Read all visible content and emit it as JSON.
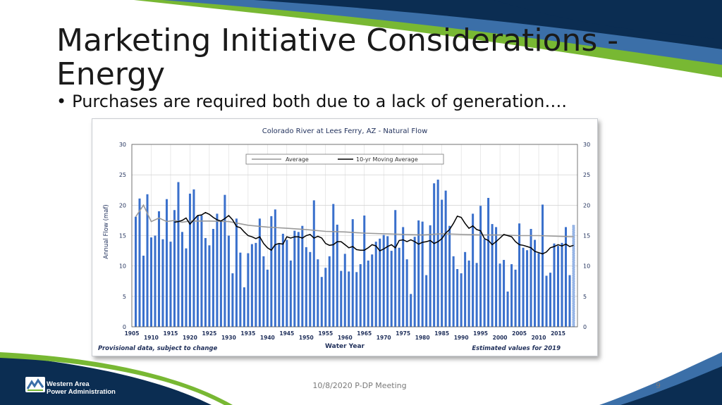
{
  "slide": {
    "title": "Marketing Initiative Considerations - Energy",
    "bullet": "Purchases are required both due to a lack of generation….",
    "footer_center": "10/8/2020 P-DP Meeting",
    "page_number": "9",
    "logo_line1": "Western Area",
    "logo_line2": "Power Administration",
    "colors": {
      "navy": "#0b2d52",
      "green": "#78b833",
      "blue": "#3b6fa8",
      "bar": "#3a70cc"
    }
  },
  "chart_data": {
    "type": "bar",
    "title": "Colorado River at Lees Ferry, AZ - Natural Flow",
    "xlabel": "Water Year",
    "ylabel": "Annual Flow (maf)",
    "ylim": [
      0,
      30
    ],
    "yticks": [
      0,
      5,
      10,
      15,
      20,
      25,
      30
    ],
    "xticks": [
      1905,
      1910,
      1915,
      1920,
      1925,
      1930,
      1935,
      1940,
      1945,
      1950,
      1955,
      1960,
      1965,
      1970,
      1975,
      1980,
      1985,
      1990,
      1995,
      2000,
      2005,
      2010,
      2015
    ],
    "grid": true,
    "legend": [
      "Average",
      "10-yr Moving Average"
    ],
    "legend_position": "top",
    "left_note": "Provisional data, subject to change",
    "right_note": "Estimated values for 2019",
    "years": [
      1906,
      1907,
      1908,
      1909,
      1910,
      1911,
      1912,
      1913,
      1914,
      1915,
      1916,
      1917,
      1918,
      1919,
      1920,
      1921,
      1922,
      1923,
      1924,
      1925,
      1926,
      1927,
      1928,
      1929,
      1930,
      1931,
      1932,
      1933,
      1934,
      1935,
      1936,
      1937,
      1938,
      1939,
      1940,
      1941,
      1942,
      1943,
      1944,
      1945,
      1946,
      1947,
      1948,
      1949,
      1950,
      1951,
      1952,
      1953,
      1954,
      1955,
      1956,
      1957,
      1958,
      1959,
      1960,
      1961,
      1962,
      1963,
      1964,
      1965,
      1966,
      1967,
      1968,
      1969,
      1970,
      1971,
      1972,
      1973,
      1974,
      1975,
      1976,
      1977,
      1978,
      1979,
      1980,
      1981,
      1982,
      1983,
      1984,
      1985,
      1986,
      1987,
      1988,
      1989,
      1990,
      1991,
      1992,
      1993,
      1994,
      1995,
      1996,
      1997,
      1998,
      1999,
      2000,
      2001,
      2002,
      2003,
      2004,
      2005,
      2006,
      2007,
      2008,
      2009,
      2010,
      2011,
      2012,
      2013,
      2014,
      2015,
      2016,
      2017,
      2018,
      2019
    ],
    "values": [
      18.1,
      21.1,
      11.7,
      21.8,
      14.7,
      15.0,
      19.0,
      14.4,
      21.0,
      14.0,
      19.2,
      23.8,
      15.6,
      12.9,
      21.9,
      22.6,
      18.3,
      18.3,
      14.6,
      13.4,
      16.1,
      18.6,
      17.3,
      21.7,
      15.0,
      8.8,
      17.8,
      12.2,
      6.5,
      12.1,
      13.6,
      13.8,
      17.8,
      11.6,
      9.4,
      18.2,
      19.3,
      13.6,
      15.3,
      14.3,
      10.9,
      15.8,
      15.6,
      16.6,
      13.1,
      12.3,
      20.8,
      11.1,
      8.2,
      9.7,
      11.6,
      20.2,
      16.8,
      9.2,
      12.0,
      9.1,
      17.7,
      9.0,
      10.3,
      18.3,
      10.9,
      11.9,
      14.0,
      14.5,
      15.1,
      14.9,
      12.5,
      19.2,
      13.0,
      16.4,
      11.1,
      5.4,
      14.8,
      17.5,
      17.3,
      8.5,
      16.7,
      23.6,
      24.2,
      20.9,
      22.4,
      16.6,
      11.6,
      9.5,
      8.8,
      12.3,
      10.9,
      18.6,
      10.5,
      19.9,
      14.4,
      21.2,
      16.9,
      16.4,
      10.4,
      11.0,
      5.8,
      10.3,
      9.4,
      17.0,
      13.0,
      12.6,
      16.1,
      14.3,
      12.1,
      20.1,
      8.4,
      8.9,
      13.7,
      13.3,
      13.8,
      16.4,
      8.5,
      16.7
    ],
    "average_line": [
      [
        1906,
        18.1
      ],
      [
        1908,
        20.0
      ],
      [
        1910,
        17.3
      ],
      [
        1912,
        17.9
      ],
      [
        1914,
        17.3
      ],
      [
        1916,
        17.5
      ],
      [
        1918,
        17.2
      ],
      [
        1920,
        17.4
      ],
      [
        1925,
        17.4
      ],
      [
        1930,
        17.3
      ],
      [
        1935,
        16.7
      ],
      [
        1940,
        16.4
      ],
      [
        1945,
        16.2
      ],
      [
        1950,
        16.0
      ],
      [
        1955,
        15.7
      ],
      [
        1960,
        15.6
      ],
      [
        1965,
        15.4
      ],
      [
        1970,
        15.3
      ],
      [
        1975,
        15.2
      ],
      [
        1980,
        15.1
      ],
      [
        1985,
        15.3
      ],
      [
        1990,
        15.2
      ],
      [
        1995,
        15.1
      ],
      [
        2000,
        15.1
      ],
      [
        2005,
        15.0
      ],
      [
        2010,
        15.0
      ],
      [
        2015,
        14.9
      ],
      [
        2019,
        14.8
      ]
    ],
    "moving_average_line": [
      [
        1916,
        17.2
      ],
      [
        1917,
        17.3
      ],
      [
        1918,
        17.5
      ],
      [
        1919,
        17.9
      ],
      [
        1920,
        16.9
      ],
      [
        1921,
        17.6
      ],
      [
        1922,
        18.3
      ],
      [
        1923,
        18.4
      ],
      [
        1924,
        18.8
      ],
      [
        1925,
        18.5
      ],
      [
        1926,
        18.0
      ],
      [
        1927,
        17.6
      ],
      [
        1928,
        17.4
      ],
      [
        1929,
        17.8
      ],
      [
        1930,
        18.3
      ],
      [
        1931,
        17.6
      ],
      [
        1932,
        16.5
      ],
      [
        1933,
        16.3
      ],
      [
        1934,
        15.6
      ],
      [
        1935,
        15.0
      ],
      [
        1936,
        14.8
      ],
      [
        1937,
        14.5
      ],
      [
        1938,
        14.8
      ],
      [
        1939,
        13.7
      ],
      [
        1940,
        13.0
      ],
      [
        1941,
        12.6
      ],
      [
        1942,
        13.5
      ],
      [
        1943,
        13.7
      ],
      [
        1944,
        13.6
      ],
      [
        1945,
        14.8
      ],
      [
        1946,
        14.6
      ],
      [
        1947,
        14.8
      ],
      [
        1948,
        14.8
      ],
      [
        1949,
        14.6
      ],
      [
        1950,
        15.0
      ],
      [
        1951,
        15.2
      ],
      [
        1952,
        14.6
      ],
      [
        1953,
        14.9
      ],
      [
        1954,
        14.6
      ],
      [
        1955,
        13.7
      ],
      [
        1956,
        13.4
      ],
      [
        1957,
        13.5
      ],
      [
        1958,
        14.0
      ],
      [
        1959,
        14.0
      ],
      [
        1960,
        13.5
      ],
      [
        1961,
        13.0
      ],
      [
        1962,
        13.2
      ],
      [
        1963,
        12.7
      ],
      [
        1964,
        12.6
      ],
      [
        1965,
        12.6
      ],
      [
        1966,
        13.0
      ],
      [
        1967,
        13.5
      ],
      [
        1968,
        13.3
      ],
      [
        1969,
        12.5
      ],
      [
        1970,
        12.8
      ],
      [
        1971,
        13.2
      ],
      [
        1972,
        13.5
      ],
      [
        1973,
        13.0
      ],
      [
        1974,
        14.2
      ],
      [
        1975,
        14.3
      ],
      [
        1976,
        14.0
      ],
      [
        1977,
        14.3
      ],
      [
        1978,
        14.0
      ],
      [
        1979,
        13.6
      ],
      [
        1980,
        13.9
      ],
      [
        1981,
        14.0
      ],
      [
        1982,
        14.2
      ],
      [
        1983,
        13.7
      ],
      [
        1984,
        14.0
      ],
      [
        1985,
        14.5
      ],
      [
        1986,
        15.4
      ],
      [
        1987,
        16.0
      ],
      [
        1988,
        17.0
      ],
      [
        1989,
        18.2
      ],
      [
        1990,
        18.0
      ],
      [
        1991,
        17.0
      ],
      [
        1992,
        16.2
      ],
      [
        1993,
        16.6
      ],
      [
        1994,
        16.0
      ],
      [
        1995,
        15.8
      ],
      [
        1996,
        14.5
      ],
      [
        1997,
        14.2
      ],
      [
        1998,
        13.5
      ],
      [
        1999,
        14.0
      ],
      [
        2000,
        14.6
      ],
      [
        2001,
        15.2
      ],
      [
        2002,
        15.0
      ],
      [
        2003,
        14.8
      ],
      [
        2004,
        14.0
      ],
      [
        2005,
        13.5
      ],
      [
        2006,
        13.4
      ],
      [
        2007,
        13.2
      ],
      [
        2008,
        13.0
      ],
      [
        2009,
        12.4
      ],
      [
        2010,
        12.2
      ],
      [
        2011,
        12.0
      ],
      [
        2012,
        12.3
      ],
      [
        2013,
        13.0
      ],
      [
        2014,
        13.2
      ],
      [
        2015,
        13.5
      ],
      [
        2016,
        13.3
      ],
      [
        2017,
        13.6
      ],
      [
        2018,
        13.2
      ],
      [
        2019,
        13.4
      ]
    ]
  }
}
